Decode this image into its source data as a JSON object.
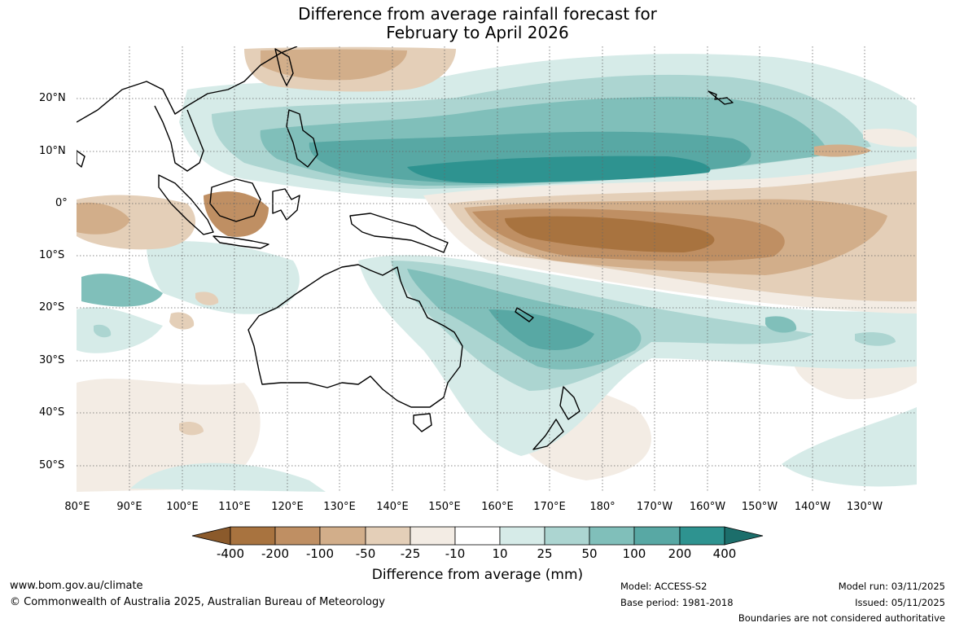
{
  "title": {
    "line1": "Difference from average rainfall forecast for",
    "line2": "February to April 2026"
  },
  "map": {
    "lat_labels": [
      "20°N",
      "10°N",
      "0°",
      "10°S",
      "20°S",
      "30°S",
      "40°S",
      "50°S"
    ],
    "lon_labels": [
      "80°E",
      "90°E",
      "100°E",
      "110°E",
      "120°E",
      "130°E",
      "140°E",
      "150°E",
      "160°E",
      "170°E",
      "180°",
      "170°W",
      "160°W",
      "150°W",
      "140°W",
      "130°W"
    ]
  },
  "colorbar": {
    "labels": [
      "-400",
      "-200",
      "-100",
      "-50",
      "-25",
      "-10",
      "10",
      "25",
      "50",
      "100",
      "200",
      "400"
    ],
    "colors": [
      "#8b5a2b",
      "#a8733f",
      "#bf8f63",
      "#d2ae8a",
      "#e4cfb8",
      "#f3ece4",
      "#ffffff",
      "#d6ebe8",
      "#acd5d1",
      "#80bfba",
      "#58a8a4",
      "#2e9390",
      "#1c6e6b"
    ],
    "title": "Difference from average (mm)"
  },
  "footer": {
    "url": "www.bom.gov.au/climate",
    "copyright": "© Commonwealth of Australia 2025, Australian Bureau of Meteorology",
    "model": "Model: ACCESS-S2",
    "base_period": "Base period: 1981-2018",
    "model_run": "Model run: 03/11/2025",
    "issued": "Issued: 05/11/2025",
    "disclaimer": "Boundaries are not considered authoritative"
  }
}
